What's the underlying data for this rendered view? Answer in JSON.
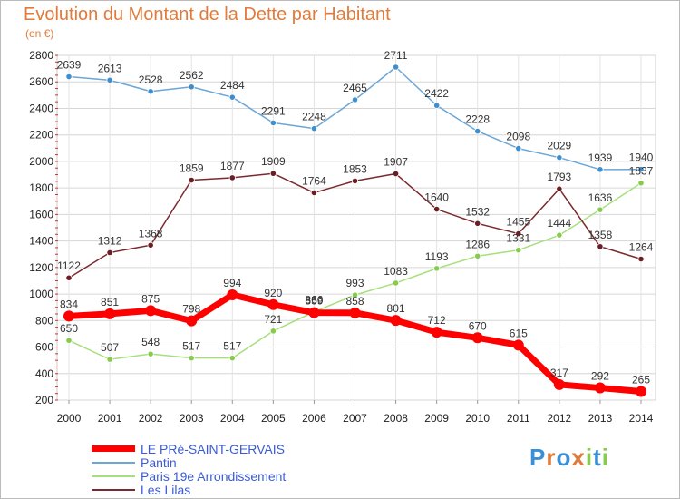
{
  "chart_data": {
    "type": "line",
    "title": "Evolution du Montant de la Dette par Habitant",
    "subtitle": "(en €)",
    "x": [
      "2000",
      "2001",
      "2002",
      "2003",
      "2004",
      "2005",
      "2006",
      "2007",
      "2008",
      "2009",
      "2010",
      "2011",
      "2012",
      "2013",
      "2014"
    ],
    "ylim": [
      200,
      2800
    ],
    "yticks": [
      200,
      400,
      600,
      800,
      1000,
      1200,
      1400,
      1600,
      1800,
      2000,
      2200,
      2400,
      2600,
      2800
    ],
    "grid": true,
    "legend_position": "bottom-left",
    "series": [
      {
        "name": "LE PRé-SAINT-GERVAIS",
        "color": "#ff0000",
        "marker": "#ff0000",
        "values": [
          834,
          851,
          875,
          798,
          994,
          920,
          859,
          858,
          801,
          712,
          670,
          615,
          317,
          292,
          265
        ]
      },
      {
        "name": "Pantin",
        "color": "#6aa6d8",
        "marker": "#3f8fcf",
        "values": [
          2639,
          2613,
          2528,
          2562,
          2484,
          2291,
          2248,
          2465,
          2711,
          2422,
          2228,
          2098,
          2029,
          1939,
          1940
        ]
      },
      {
        "name": "Paris 19e  Arrondissement",
        "color": "#a6e07d",
        "marker": "#86cc4a",
        "values": [
          650,
          507,
          548,
          517,
          517,
          721,
          866,
          993,
          1083,
          1193,
          1286,
          1331,
          1444,
          1636,
          1837
        ]
      },
      {
        "name": "Les Lilas",
        "color": "#7a2a2e",
        "marker": "#6b1f24",
        "values": [
          1122,
          1312,
          1368,
          1859,
          1877,
          1909,
          1764,
          1853,
          1907,
          1640,
          1532,
          1455,
          1793,
          1358,
          1264
        ]
      }
    ]
  },
  "branding": {
    "logo_text": "Proxiti",
    "letters": [
      {
        "ch": "P",
        "color": "#3a8fd6"
      },
      {
        "ch": "r",
        "color": "#e07b3c"
      },
      {
        "ch": "o",
        "color": "#3a8fd6"
      },
      {
        "ch": "x",
        "color": "#e07b3c"
      },
      {
        "ch": "i",
        "color": "#86cc4a"
      },
      {
        "ch": "t",
        "color": "#3a8fd6"
      },
      {
        "ch": "i",
        "color": "#86cc4a"
      }
    ]
  }
}
